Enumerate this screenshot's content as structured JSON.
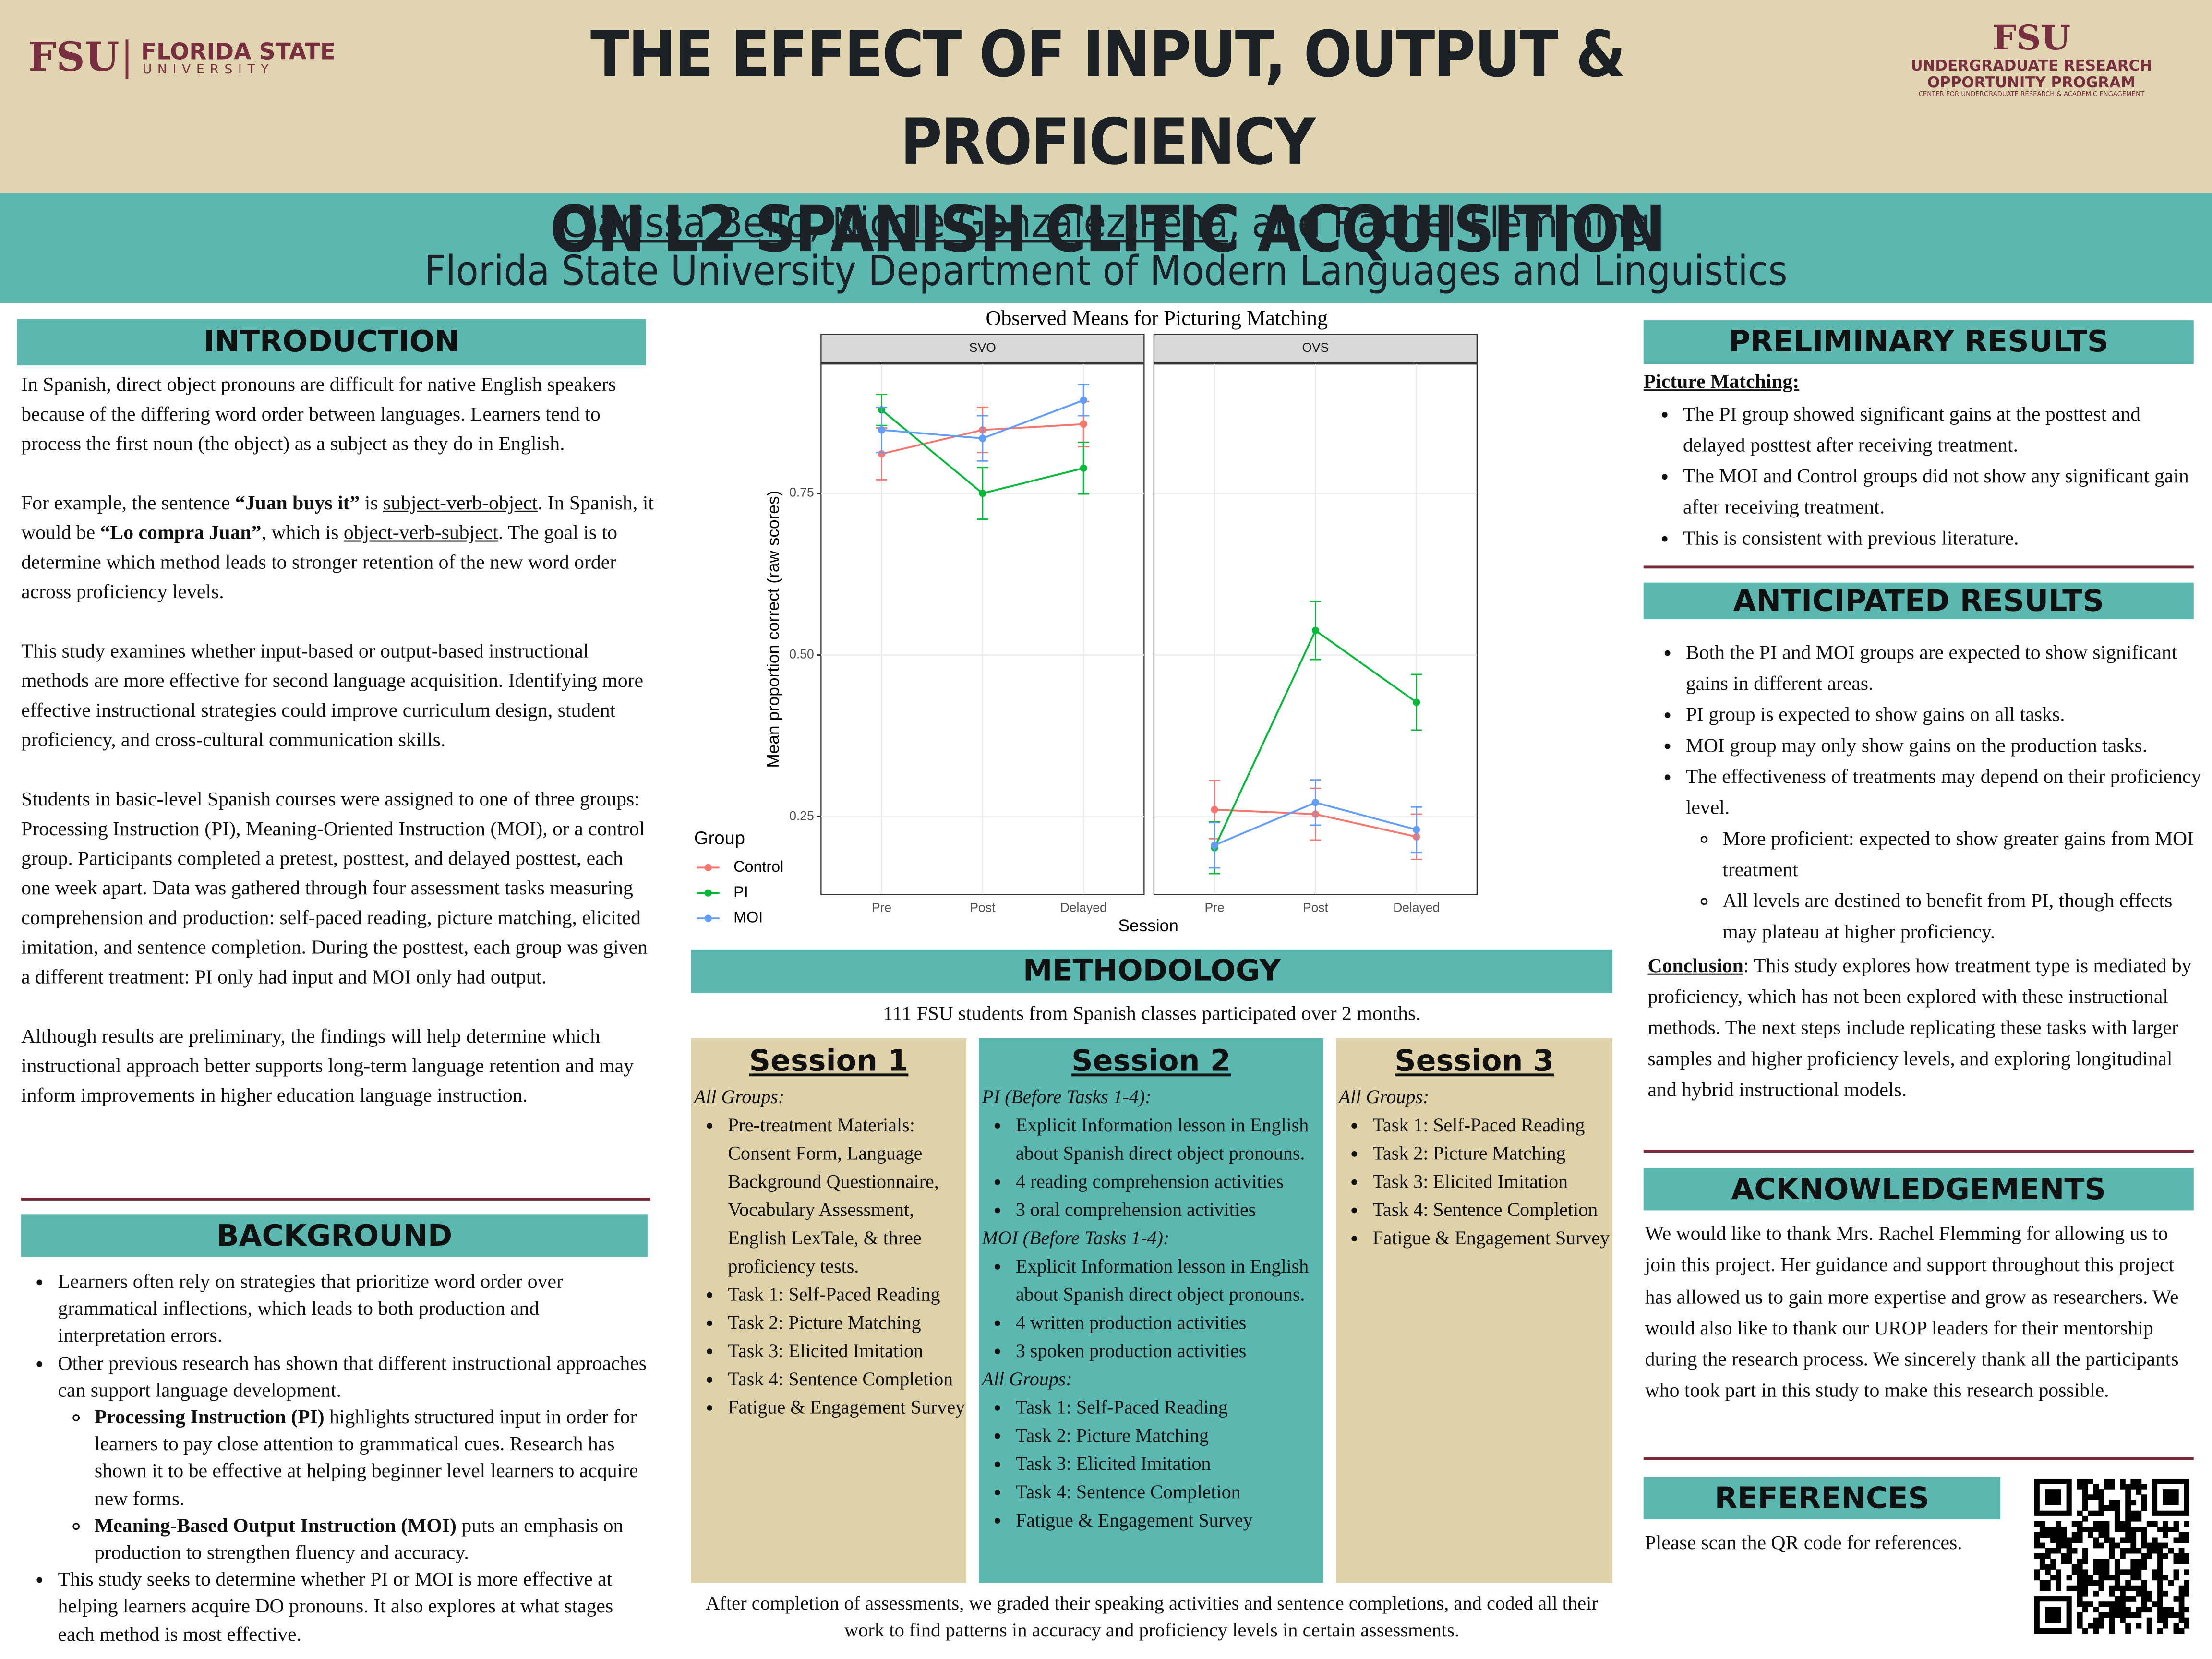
{
  "header": {
    "logo_left": "FSU",
    "logo_left_name": "FLORIDA STATE",
    "logo_left_sub": "UNIVERSITY",
    "title_line1": "THE EFFECT OF INPUT, OUTPUT & PROFICIENCY",
    "title_line2": "ON L2 SPANISH CLITIC ACQUISITION",
    "logo_right": "FSU",
    "urop_line1": "UNDERGRADUATE RESEARCH",
    "urop_line2": "OPPORTUNITY PROGRAM",
    "urop_line3": "CENTER FOR UNDERGRADUATE RESEARCH & ACADEMIC ENGAGEMENT"
  },
  "authors": [
    {
      "u": "Clarissa Bello"
    },
    ", ",
    {
      "u": "Nicole Gonzalez-Pena"
    },
    ", and Rachel Flemming"
  ],
  "affiliation": "Florida State University Department of Modern Languages and Linguistics",
  "introduction": {
    "heading": "INTRODUCTION",
    "paragraphs": [
      [
        "In Spanish, direct object pronouns are  difficult for native English speakers because of the differing word order between languages. Learners tend to process the first noun (the object) as a subject as they do in English."
      ],
      [
        "For example, the sentence ",
        {
          "b": "“Juan buys it”"
        },
        " is ",
        {
          "u": "subject-verb-object"
        },
        ". In Spanish, it would be ",
        {
          "b": "“Lo compra Juan”"
        },
        ", which is ",
        {
          "u": "object-verb-subject"
        },
        ". The goal is to determine which method leads to stronger retention of the new word order across proficiency levels."
      ],
      [
        "This study examines whether input-based or output-based instructional methods are more effective for second language acquisition. Identifying more effective instructional strategies could improve curriculum design, student proficiency, and cross-cultural communication skills."
      ],
      [
        "Students in basic-level Spanish courses were assigned to one of three groups: Processing Instruction (PI), Meaning-Oriented Instruction (MOI), or a control group. Participants completed a pretest, posttest, and delayed posttest, each one week apart. Data was gathered through four assessment tasks measuring comprehension and production: self-paced reading, picture matching, elicited imitation, and sentence completion. During the posttest, each group was given a different treatment: PI only had input and MOI only had output."
      ],
      [
        "Although results are preliminary, the findings will help determine which instructional approach better supports long-term language retention and may inform improvements in higher education language instruction."
      ]
    ]
  },
  "background": {
    "heading": "BACKGROUND",
    "items": [
      {
        "runs": [
          "Learners often rely on strategies that prioritize word order over grammatical inflections, which leads to both production and interpretation errors."
        ]
      },
      {
        "runs": [
          "Other previous research has shown that different instructional approaches can support language development."
        ],
        "items": [
          {
            "runs": [
              {
                "b": "Processing Instruction (PI)"
              },
              " highlights structured input in order for learners to pay close attention to grammatical cues. Research has shown it to be effective at helping beginner level learners to acquire new forms."
            ]
          },
          {
            "runs": [
              {
                "b": "Meaning-Based Output Instruction (MOI)"
              },
              " puts an emphasis on production to strengthen fluency and accuracy."
            ]
          }
        ]
      },
      {
        "runs": [
          "This study seeks to determine whether PI or MOI is more effective at helping learners acquire DO pronouns. It also explores at what stages each method is most effective."
        ]
      }
    ]
  },
  "chart_data": {
    "type": "line",
    "title": "Observed Means for Picturing Matching",
    "x_label": "Session",
    "y_label": "Mean proportion correct (raw scores)",
    "legend_title": "Group",
    "grid": true,
    "categories": [
      "Pre",
      "Post",
      "Delayed"
    ],
    "ylim": [
      0.13,
      0.95
    ],
    "yticks": [
      0.25,
      {
        "value": 0.5,
        "label": "0.50"
      },
      0.75
    ],
    "panels": [
      {
        "title": "SVO",
        "series": [
          {
            "name": "Control",
            "color": "#f8766d",
            "values": [
              0.811,
              0.848,
              0.857
            ],
            "errors": [
              0.04,
              0.035,
              0.035
            ]
          },
          {
            "name": "PI",
            "color": "#00ba38",
            "values": [
              0.879,
              0.75,
              0.789
            ],
            "errors": [
              0.024,
              0.04,
              0.04
            ]
          },
          {
            "name": "MOI",
            "color": "#619cff",
            "values": [
              0.848,
              0.835,
              0.894
            ],
            "errors": [
              0.035,
              0.035,
              0.024
            ]
          }
        ]
      },
      {
        "title": "OVS",
        "series": [
          {
            "name": "Control",
            "color": "#f8766d",
            "values": [
              0.261,
              0.254,
              0.219
            ],
            "errors": [
              0.045,
              0.04,
              0.035
            ]
          },
          {
            "name": "PI",
            "color": "#00ba38",
            "values": [
              0.202,
              0.538,
              0.427
            ],
            "errors": [
              0.04,
              0.045,
              0.043
            ]
          },
          {
            "name": "MOI",
            "color": "#619cff",
            "values": [
              0.206,
              0.272,
              0.23
            ],
            "errors": [
              0.035,
              0.035,
              0.035
            ]
          }
        ]
      }
    ]
  },
  "methodology": {
    "heading": "METHODOLOGY",
    "intro": "111 FSU students from Spanish classes participated over 2 months.",
    "sessions": [
      {
        "title": "Session 1",
        "blocks": [
          {
            "label": "All Groups:",
            "items": [
              "Pre-treatment Materials: Consent Form, Language Background Questionnaire, Vocabulary Assessment, English LexTale, & three proficiency tests.",
              "Task 1: Self-Paced Reading",
              "Task 2: Picture Matching",
              "Task 3: Elicited Imitation",
              "Task 4: Sentence Completion",
              "Fatigue & Engagement Survey"
            ]
          }
        ]
      },
      {
        "title": "Session 2",
        "blocks": [
          {
            "label": "PI (Before Tasks 1-4):",
            "items": [
              "Explicit Information lesson in English about Spanish direct object pronouns.",
              "4 reading comprehension activities",
              "3 oral comprehension activities"
            ]
          },
          {
            "label": "MOI (Before Tasks 1-4):",
            "items": [
              "Explicit Information lesson in English about Spanish direct object pronouns.",
              "4 written production activities",
              "3 spoken production activities"
            ]
          },
          {
            "label": "All Groups:",
            "items": [
              "Task 1: Self-Paced Reading",
              "Task 2: Picture Matching",
              "Task 3: Elicited Imitation",
              "Task 4: Sentence Completion",
              "Fatigue & Engagement Survey"
            ]
          }
        ]
      },
      {
        "title": "Session 3",
        "blocks": [
          {
            "label": "All Groups:",
            "items": [
              "Task 1: Self-Paced Reading",
              "Task 2: Picture Matching",
              "Task 3: Elicited Imitation",
              "Task 4: Sentence Completion",
              "Fatigue & Engagement Survey"
            ]
          }
        ]
      }
    ],
    "footer": "After completion of assessments, we graded their speaking activities and sentence completions, and coded all their work to find patterns in accuracy and proficiency levels in certain assessments."
  },
  "preliminary": {
    "heading": "PRELIMINARY RESULTS",
    "subheading": "Picture Matching:",
    "items": [
      {
        "runs": [
          "The PI group showed significant gains at the posttest and delayed posttest after receiving treatment."
        ]
      },
      {
        "runs": [
          "The MOI and Control groups did not show any significant gain after receiving treatment."
        ]
      },
      {
        "runs": [
          "This is consistent with previous literature."
        ]
      }
    ]
  },
  "anticipated": {
    "heading": "ANTICIPATED RESULTS",
    "items": [
      {
        "runs": [
          "Both the PI and MOI groups are expected to show significant gains in different areas."
        ]
      },
      {
        "runs": [
          "PI group is expected to show gains on all tasks."
        ]
      },
      {
        "runs": [
          "MOI group may only show gains on the production tasks."
        ]
      },
      {
        "runs": [
          "The effectiveness of treatments may depend on their proficiency level."
        ],
        "items": [
          {
            "runs": [
              "More proficient: expected to show greater gains from MOI treatment"
            ]
          },
          {
            "runs": [
              "All levels are destined to benefit from PI, though effects may plateau at higher proficiency."
            ]
          }
        ]
      }
    ],
    "conclusion": [
      {
        "bu": "Conclusion"
      },
      ": This study explores how treatment type is mediated by proficiency, which has not been explored with these instructional methods. The next steps include replicating these tasks with larger samples and higher proficiency levels, and exploring longitudinal and hybrid instructional models."
    ]
  },
  "acknowledgements": {
    "heading": "ACKNOWLEDGEMENTS",
    "text": "We would like to thank Mrs. Rachel Flemming for allowing us to join this project. Her guidance and support throughout this project has allowed us to gain more expertise and grow as researchers. We would also like to thank our UROP leaders for their mentorship during the research process. We sincerely thank all the participants who took part in this study to make this research possible."
  },
  "references": {
    "heading": "REFERENCES",
    "text": "Please scan the QR code for references."
  }
}
